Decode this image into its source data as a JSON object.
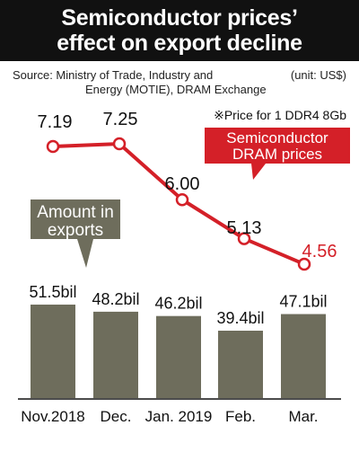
{
  "header": {
    "title_line1": "Semiconductor prices’",
    "title_line2": "effect on export decline"
  },
  "source": {
    "line1": "Source: Ministry of Trade, Industry and",
    "line2": "Energy (MOTIE), DRAM Exchange",
    "unit": "(unit: US$)"
  },
  "note": "※Price for 1 DDR4 8Gb",
  "colors": {
    "header_bg": "#111111",
    "bar": "#6e6d5c",
    "line": "#d42028",
    "callout_dram": "#d42028",
    "callout_exports": "#6e6d5c"
  },
  "chart_data": {
    "type": "bar",
    "categories": [
      "Nov.2018",
      "Dec.",
      "Jan. 2019",
      "Feb.",
      "Mar."
    ],
    "series": [
      {
        "name": "Amount in exports",
        "type": "bar",
        "values": [
          51.5,
          48.2,
          46.2,
          39.4,
          47.1
        ],
        "labels": [
          "51.5bil",
          "48.2bil",
          "46.2bil",
          "39.4bil",
          "47.1bil"
        ],
        "callout": [
          "Amount in",
          "exports"
        ]
      },
      {
        "name": "Semiconductor DRAM prices",
        "type": "line",
        "values": [
          7.19,
          7.25,
          6.0,
          5.13,
          4.56
        ],
        "labels": [
          "7.19",
          "7.25",
          "6.00",
          "5.13",
          "4.56"
        ],
        "callout": [
          "Semiconductor",
          "DRAM prices"
        ]
      }
    ],
    "legend": "callouts"
  }
}
